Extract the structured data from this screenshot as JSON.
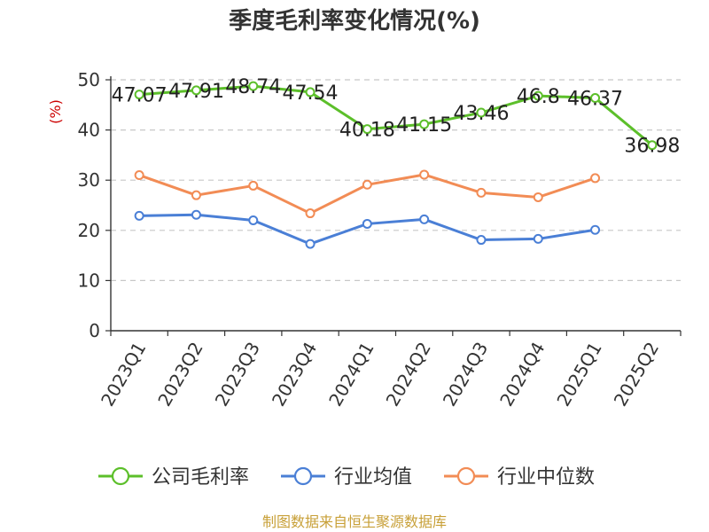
{
  "chart_data": {
    "type": "line",
    "title": "季度毛利率变化情况(%)",
    "ylabel": "(%)",
    "ylim": [
      0,
      50
    ],
    "yticks": [
      0,
      10,
      20,
      30,
      40,
      50
    ],
    "grid": true,
    "legend_position": "bottom",
    "categories": [
      "2023Q1",
      "2023Q2",
      "2023Q3",
      "2023Q4",
      "2024Q1",
      "2024Q2",
      "2024Q3",
      "2024Q4",
      "2025Q1",
      "2025Q2"
    ],
    "series": [
      {
        "name": "公司毛利率",
        "color": "#5cbf2a",
        "values": [
          47.07,
          47.91,
          48.74,
          47.54,
          40.18,
          41.15,
          43.46,
          46.8,
          46.37,
          36.98
        ],
        "labels": [
          "47.07",
          "47.91",
          "48.74",
          "47.54",
          "40.18",
          "41.15",
          "43.46",
          "46.8",
          "46.37",
          "36.98"
        ]
      },
      {
        "name": "行业均值",
        "color": "#4a7fd6",
        "values": [
          22.9,
          23.1,
          22.0,
          17.3,
          21.3,
          22.2,
          18.1,
          18.3,
          20.1,
          null
        ]
      },
      {
        "name": "行业中位数",
        "color": "#f28c55",
        "values": [
          31.0,
          27.0,
          28.9,
          23.4,
          29.1,
          31.1,
          27.5,
          26.6,
          30.4,
          null
        ]
      }
    ]
  },
  "footer": {
    "source": "制图数据来自恒生聚源数据库"
  }
}
